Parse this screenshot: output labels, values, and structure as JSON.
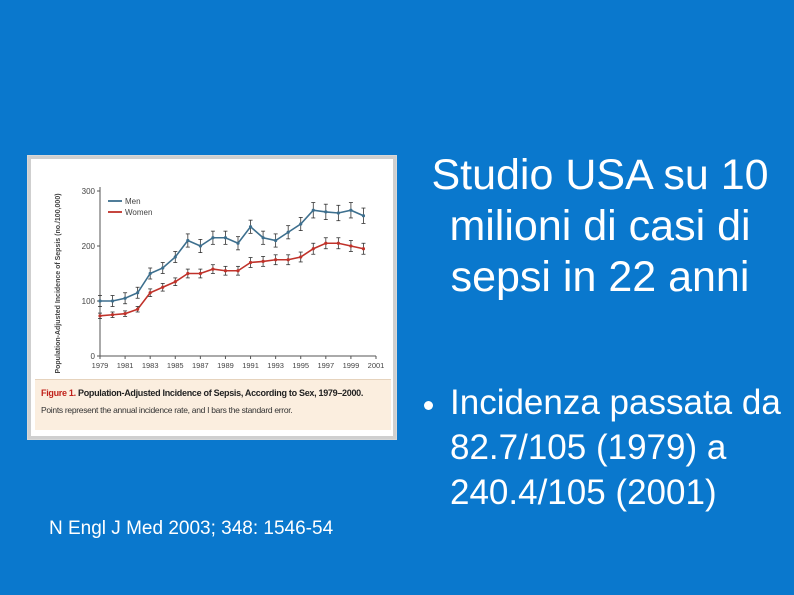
{
  "slide": {
    "title": "Studio USA su 10 milioni di casi di sepsi in 22 anni",
    "bullets": [
      "Incidenza passata da 82.7/105 (1979) a 240.4/105 (2001)"
    ],
    "reference": "N Engl J Med 2003; 348: 1546-54"
  },
  "figure": {
    "caption_label": "Figure 1.",
    "caption_title": "Population-Adjusted Incidence of Sepsis, According to Sex, 1979–2000.",
    "caption_body": "Points represent the annual incidence rate, and I bars the standard error."
  },
  "chart_data": {
    "type": "line",
    "ylabel": "Population-Adjusted Incidence of Sepsis (no./100,000)",
    "xlabel": "",
    "ylim": [
      0,
      300
    ],
    "yticks": [
      "0",
      "100",
      "200",
      "300"
    ],
    "xticks": [
      "1979",
      "1981",
      "1983",
      "1985",
      "1987",
      "1989",
      "1991",
      "1993",
      "1995",
      "1997",
      "1999",
      "2001"
    ],
    "x": [
      1979,
      1980,
      1981,
      1982,
      1983,
      1984,
      1985,
      1986,
      1987,
      1988,
      1989,
      1990,
      1991,
      1992,
      1993,
      1994,
      1995,
      1996,
      1997,
      1998,
      1999,
      2000
    ],
    "legend_position": "top-left",
    "grid": false,
    "series": [
      {
        "name": "Men",
        "color": "#3d6f8e",
        "values": [
          100,
          100,
          105,
          115,
          150,
          160,
          180,
          210,
          200,
          215,
          215,
          205,
          235,
          215,
          210,
          225,
          240,
          265,
          262,
          260,
          265,
          255
        ],
        "errors": [
          10,
          10,
          10,
          10,
          10,
          10,
          10,
          12,
          12,
          12,
          12,
          12,
          12,
          12,
          12,
          12,
          12,
          14,
          14,
          14,
          14,
          14
        ]
      },
      {
        "name": "Women",
        "color": "#c0322a",
        "values": [
          73,
          75,
          77,
          85,
          115,
          125,
          135,
          150,
          150,
          158,
          155,
          155,
          170,
          172,
          175,
          175,
          180,
          195,
          205,
          205,
          200,
          195
        ],
        "errors": [
          5,
          5,
          5,
          5,
          7,
          7,
          7,
          8,
          8,
          8,
          8,
          8,
          9,
          9,
          9,
          9,
          9,
          10,
          10,
          10,
          10,
          10
        ]
      }
    ]
  }
}
